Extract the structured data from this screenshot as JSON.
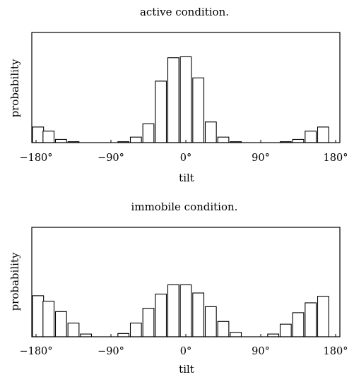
{
  "chart_data": [
    {
      "type": "bar",
      "title": "active condition.",
      "xlabel": "tilt",
      "ylabel": "probability",
      "x_tick_labels": [
        "−180°",
        "−90°",
        "0°",
        "90°",
        "180°"
      ],
      "x_ticks": [
        -180,
        -90,
        0,
        90,
        180
      ],
      "xlim": [
        -180,
        180
      ],
      "ylim": [
        0,
        0.24
      ],
      "bin_width": 15,
      "categories": [
        -180,
        -165,
        -150,
        -135,
        -120,
        -105,
        -90,
        -75,
        -60,
        -45,
        -30,
        -15,
        0,
        15,
        30,
        45,
        60,
        75,
        90,
        105,
        120,
        135,
        150,
        165,
        180
      ],
      "values": [
        0.034,
        0.025,
        0.007,
        0.002,
        0.0,
        0.0,
        0.0,
        0.002,
        0.012,
        0.041,
        0.134,
        0.185,
        0.187,
        0.141,
        0.045,
        0.012,
        0.002,
        0.0,
        0.0,
        0.0,
        0.002,
        0.007,
        0.025,
        0.034,
        0.0
      ]
    },
    {
      "type": "bar",
      "title": "immobile condition.",
      "xlabel": "tilt",
      "ylabel": "probability",
      "x_tick_labels": [
        "−180°",
        "−90°",
        "0°",
        "90°",
        "180°"
      ],
      "x_ticks": [
        -180,
        -90,
        0,
        90,
        180
      ],
      "xlim": [
        -180,
        180
      ],
      "ylim": [
        0,
        0.1
      ],
      "bin_width": 15,
      "categories": [
        -180,
        -165,
        -150,
        -135,
        -120,
        -105,
        -90,
        -75,
        -60,
        -45,
        -30,
        -15,
        0,
        15,
        30,
        45,
        60,
        75,
        90,
        105,
        120,
        135,
        150,
        165,
        180
      ],
      "values": [
        0.0375,
        0.0325,
        0.023,
        0.0125,
        0.0025,
        0.0,
        0.0,
        0.003,
        0.0125,
        0.026,
        0.039,
        0.0475,
        0.0475,
        0.04,
        0.0275,
        0.014,
        0.004,
        0.0,
        0.0,
        0.0025,
        0.0115,
        0.022,
        0.031,
        0.037,
        0.0
      ]
    }
  ]
}
